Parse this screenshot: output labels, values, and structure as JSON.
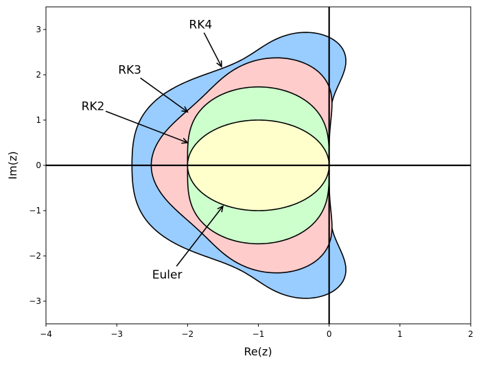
{
  "chart_data": {
    "type": "area",
    "title": "",
    "xlabel": "Re(z)",
    "ylabel": "Im(z)",
    "xlim": [
      -4,
      2
    ],
    "ylim": [
      -3.5,
      3.5
    ],
    "xticks": [
      -4,
      -3,
      -2,
      -1,
      0,
      1,
      2
    ],
    "yticks": [
      -3,
      -2,
      -1,
      0,
      1,
      2,
      3
    ],
    "grid": false,
    "legend": "none",
    "series": [
      {
        "name": "RK4",
        "order": 4,
        "color": "#99ccff"
      },
      {
        "name": "RK3",
        "order": 3,
        "color": "#ffcccc"
      },
      {
        "name": "RK2",
        "order": 2,
        "color": "#ccffcc"
      },
      {
        "name": "Euler",
        "order": 1,
        "color": "#ffffcc"
      }
    ],
    "annotations": [
      {
        "text": "RK4",
        "text_at": [
          -1.98,
          3.02
        ],
        "arrow_to": [
          -1.52,
          2.18
        ]
      },
      {
        "text": "RK3",
        "text_at": [
          -2.98,
          2.02
        ],
        "arrow_to": [
          -2.0,
          1.18
        ]
      },
      {
        "text": "RK2",
        "text_at": [
          -3.5,
          1.22
        ],
        "arrow_to": [
          -2.0,
          0.5
        ]
      },
      {
        "text": "Euler",
        "text_at": [
          -2.5,
          -2.5
        ],
        "arrow_to": [
          -1.5,
          -0.9
        ]
      }
    ]
  }
}
